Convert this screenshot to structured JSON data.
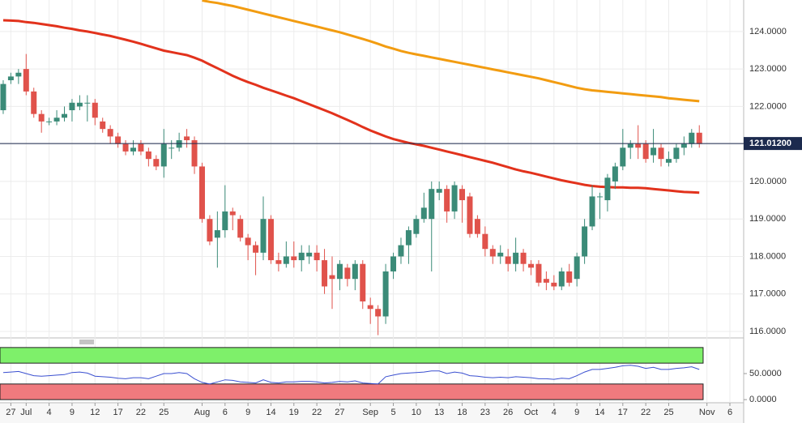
{
  "chart_data": [
    {
      "type": "candlestick",
      "open": [
        121.9,
        122.7,
        122.8,
        123.0,
        122.4,
        121.8,
        121.6,
        121.6,
        121.7,
        121.9,
        122.0,
        122.1,
        122.1,
        121.6,
        121.4,
        121.2,
        121.0,
        120.8,
        121.0,
        120.8,
        120.6,
        120.4,
        120.9,
        120.9,
        121.2,
        121.1,
        120.4,
        119.0,
        118.5,
        118.7,
        119.2,
        119.0,
        118.5,
        118.3,
        118.1,
        119.0,
        117.9,
        117.8,
        118.0,
        117.9,
        118.0,
        118.1,
        117.9,
        117.5,
        117.4,
        117.7,
        117.4,
        117.8,
        116.7,
        116.6,
        116.4,
        117.6,
        118.0,
        118.3,
        118.6,
        119.0,
        119.0,
        119.7,
        119.8,
        119.2,
        119.8,
        119.6,
        119.0,
        118.6,
        118.2,
        118.0,
        118.0,
        117.8,
        118.1,
        117.8,
        117.8,
        117.4,
        117.3,
        117.2,
        117.6,
        117.4,
        118.0,
        118.8,
        119.6,
        119.5,
        120.0,
        120.4,
        120.9,
        121.0,
        121.0,
        120.7,
        120.9,
        120.5,
        120.6,
        120.9,
        121.0,
        121.3
      ],
      "high": [
        122.7,
        122.9,
        123.0,
        123.4,
        122.5,
        121.9,
        121.7,
        121.9,
        122.0,
        122.2,
        122.3,
        122.3,
        122.2,
        121.7,
        121.5,
        121.3,
        121.1,
        121.1,
        121.1,
        120.9,
        120.7,
        121.4,
        121.1,
        121.3,
        121.4,
        121.2,
        120.5,
        119.1,
        119.2,
        119.9,
        119.3,
        119.1,
        118.6,
        118.4,
        119.6,
        119.1,
        118.1,
        118.4,
        118.4,
        118.3,
        118.3,
        118.3,
        118.2,
        118.0,
        117.9,
        117.8,
        117.9,
        117.9,
        116.9,
        116.7,
        117.8,
        118.1,
        118.5,
        118.8,
        119.1,
        119.7,
        120.0,
        120.0,
        119.9,
        120.0,
        119.9,
        119.7,
        119.1,
        118.8,
        118.3,
        118.3,
        118.2,
        118.5,
        118.2,
        117.9,
        117.9,
        117.6,
        117.5,
        117.7,
        117.8,
        118.1,
        119.0,
        119.9,
        119.7,
        120.2,
        120.5,
        121.4,
        121.1,
        121.5,
        121.1,
        121.4,
        121.0,
        120.8,
        121.0,
        121.2,
        121.4,
        121.5
      ],
      "low": [
        121.8,
        122.6,
        122.6,
        122.3,
        121.7,
        121.3,
        121.5,
        121.5,
        121.6,
        121.6,
        121.9,
        121.6,
        121.5,
        121.3,
        121.0,
        120.9,
        120.7,
        120.7,
        120.7,
        120.4,
        120.3,
        120.1,
        120.6,
        120.8,
        120.9,
        120.2,
        118.9,
        118.3,
        117.7,
        118.5,
        118.7,
        118.4,
        117.9,
        117.5,
        117.9,
        117.8,
        117.6,
        117.7,
        117.7,
        117.6,
        117.8,
        117.6,
        117.0,
        116.6,
        117.1,
        117.2,
        117.1,
        116.6,
        116.2,
        115.9,
        116.2,
        117.4,
        117.8,
        117.8,
        118.5,
        118.9,
        117.6,
        119.5,
        118.9,
        119.0,
        118.9,
        118.5,
        118.5,
        118.0,
        117.8,
        117.8,
        117.6,
        117.6,
        117.6,
        117.5,
        117.2,
        117.1,
        117.1,
        117.1,
        117.2,
        117.2,
        117.8,
        118.7,
        119.0,
        119.2,
        119.8,
        120.3,
        120.6,
        120.6,
        120.5,
        120.5,
        120.4,
        120.4,
        120.5,
        120.7,
        120.9,
        120.9
      ],
      "close": [
        122.6,
        122.8,
        122.9,
        122.4,
        121.8,
        121.6,
        121.6,
        121.7,
        121.8,
        122.1,
        122.1,
        122.1,
        121.7,
        121.4,
        121.2,
        121.0,
        120.8,
        120.9,
        120.8,
        120.6,
        120.4,
        121.0,
        120.9,
        121.1,
        121.1,
        120.4,
        119.0,
        118.4,
        118.7,
        119.2,
        119.1,
        118.5,
        118.3,
        118.1,
        119.0,
        117.9,
        117.8,
        118.0,
        117.9,
        118.1,
        118.1,
        117.9,
        117.2,
        117.4,
        117.8,
        117.4,
        117.8,
        116.8,
        116.6,
        116.4,
        117.6,
        118.0,
        118.3,
        118.7,
        119.0,
        119.3,
        119.8,
        119.8,
        119.2,
        119.9,
        119.5,
        118.6,
        118.6,
        118.2,
        118.0,
        118.1,
        117.8,
        118.1,
        117.8,
        117.7,
        117.3,
        117.3,
        117.2,
        117.6,
        117.3,
        118.0,
        118.8,
        119.6,
        119.6,
        120.1,
        120.4,
        120.9,
        121.0,
        120.9,
        120.6,
        120.9,
        120.6,
        120.6,
        120.9,
        121.0,
        121.3,
        121.0
      ],
      "up_color": "#3b8b78",
      "down_color": "#e0524b",
      "series": [
        {
          "color": "#e2321c",
          "values": [
            124.3,
            124.29,
            124.28,
            124.25,
            124.23,
            124.2,
            124.17,
            124.14,
            124.1,
            124.07,
            124.03,
            124.0,
            123.96,
            123.92,
            123.88,
            123.83,
            123.78,
            123.73,
            123.67,
            123.61,
            123.55,
            123.49,
            123.45,
            123.41,
            123.37,
            123.3,
            123.22,
            123.12,
            123.02,
            122.92,
            122.82,
            122.73,
            122.65,
            122.58,
            122.5,
            122.43,
            122.36,
            122.29,
            122.22,
            122.14,
            122.06,
            121.98,
            121.9,
            121.82,
            121.73,
            121.64,
            121.55,
            121.45,
            121.36,
            121.28,
            121.2,
            121.13,
            121.08,
            121.03,
            120.99,
            120.95,
            120.9,
            120.85,
            120.8,
            120.75,
            120.7,
            120.65,
            120.6,
            120.55,
            120.5,
            120.44,
            120.38,
            120.32,
            120.27,
            120.23,
            120.18,
            120.13,
            120.08,
            120.03,
            119.99,
            119.95,
            119.91,
            119.88,
            119.86,
            119.85,
            119.84,
            119.84,
            119.83,
            119.83,
            119.82,
            119.8,
            119.78,
            119.76,
            119.74,
            119.72,
            119.71,
            119.7
          ]
        },
        {
          "color": "#f29c11",
          "values": [
            null,
            null,
            null,
            null,
            null,
            null,
            null,
            null,
            null,
            null,
            null,
            null,
            null,
            null,
            null,
            null,
            null,
            null,
            null,
            null,
            null,
            null,
            null,
            null,
            null,
            null,
            124.83,
            124.79,
            124.76,
            124.72,
            124.68,
            124.63,
            124.58,
            124.53,
            124.48,
            124.43,
            124.38,
            124.33,
            124.28,
            124.23,
            124.18,
            124.13,
            124.08,
            124.03,
            123.98,
            123.92,
            123.86,
            123.8,
            123.74,
            123.67,
            123.6,
            123.54,
            123.48,
            123.43,
            123.39,
            123.35,
            123.31,
            123.27,
            123.23,
            123.19,
            123.15,
            123.11,
            123.07,
            123.03,
            122.99,
            122.95,
            122.91,
            122.87,
            122.83,
            122.79,
            122.75,
            122.7,
            122.65,
            122.6,
            122.55,
            122.5,
            122.46,
            122.43,
            122.41,
            122.39,
            122.37,
            122.35,
            122.33,
            122.31,
            122.29,
            122.27,
            122.25,
            122.22,
            122.2,
            122.18,
            122.16,
            122.14
          ]
        }
      ],
      "last_price": {
        "value": 121.012,
        "label": "121.01200"
      },
      "ylim": [
        115.87,
        124.84
      ],
      "yticks": [
        {
          "value": 116,
          "label": "116.0000"
        },
        {
          "value": 117,
          "label": "117.0000"
        },
        {
          "value": 118,
          "label": "118.0000"
        },
        {
          "value": 119,
          "label": "119.0000"
        },
        {
          "value": 120,
          "label": "120.0000"
        },
        {
          "value": 121,
          "label": "121.0000"
        },
        {
          "value": 122,
          "label": "122.0000"
        },
        {
          "value": 123,
          "label": "123.0000"
        },
        {
          "value": 124,
          "label": "124.0000"
        }
      ],
      "xlim": [
        -0.42,
        96.8
      ],
      "xticks": [
        {
          "value": 1,
          "label": "27"
        },
        {
          "value": 3,
          "label": "Jul"
        },
        {
          "value": 6,
          "label": "4"
        },
        {
          "value": 9,
          "label": "9"
        },
        {
          "value": 12,
          "label": "12"
        },
        {
          "value": 15,
          "label": "17"
        },
        {
          "value": 18,
          "label": "22"
        },
        {
          "value": 21,
          "label": "25"
        },
        {
          "value": 26,
          "label": "Aug"
        },
        {
          "value": 29,
          "label": "6"
        },
        {
          "value": 32,
          "label": "9"
        },
        {
          "value": 35,
          "label": "14"
        },
        {
          "value": 38,
          "label": "19"
        },
        {
          "value": 41,
          "label": "22"
        },
        {
          "value": 44,
          "label": "27"
        },
        {
          "value": 48,
          "label": "Sep"
        },
        {
          "value": 51,
          "label": "5"
        },
        {
          "value": 54,
          "label": "10"
        },
        {
          "value": 57,
          "label": "13"
        },
        {
          "value": 60,
          "label": "18"
        },
        {
          "value": 63,
          "label": "23"
        },
        {
          "value": 66,
          "label": "26"
        },
        {
          "value": 69,
          "label": "Oct"
        },
        {
          "value": 72,
          "label": "4"
        },
        {
          "value": 75,
          "label": "9"
        },
        {
          "value": 78,
          "label": "14"
        },
        {
          "value": 81,
          "label": "17"
        },
        {
          "value": 84,
          "label": "22"
        },
        {
          "value": 87,
          "label": "25"
        },
        {
          "value": 92,
          "label": "Nov"
        },
        {
          "value": 95,
          "label": "6"
        }
      ],
      "grid": true
    },
    {
      "type": "line",
      "color": "#3a4fd0",
      "values": [
        52,
        53,
        54,
        50,
        46,
        45,
        46,
        47,
        48,
        52,
        53,
        51,
        45,
        44,
        43,
        41,
        40,
        42,
        42,
        40,
        45,
        50,
        50,
        52,
        50,
        40,
        33,
        30,
        34,
        38,
        37,
        34,
        33,
        32,
        38,
        33,
        32,
        34,
        34,
        35,
        35,
        34,
        32,
        33,
        35,
        34,
        36,
        32,
        31,
        30,
        44,
        47,
        50,
        51,
        52,
        53,
        55,
        55,
        50,
        53,
        51,
        46,
        45,
        43,
        42,
        43,
        42,
        44,
        43,
        42,
        40,
        40,
        39,
        41,
        40,
        46,
        53,
        58,
        58,
        60,
        62,
        65,
        66,
        64,
        60,
        62,
        58,
        58,
        60,
        61,
        63,
        58
      ],
      "upper_band": [
        70,
        100
      ],
      "upper_band_color": "#7ef06a",
      "lower_band": [
        0,
        30
      ],
      "lower_band_color": "#f07a7e",
      "ylim": [
        -6,
        106
      ],
      "yticks": [
        {
          "value": 0,
          "label": "0.0000"
        },
        {
          "value": 50,
          "label": "50.0000"
        }
      ],
      "xlim": [
        -0.42,
        96.8
      ]
    }
  ]
}
